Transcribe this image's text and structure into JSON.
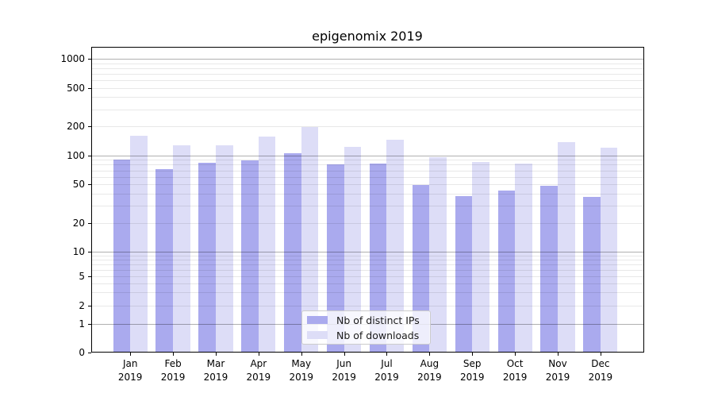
{
  "chart_data": {
    "type": "bar",
    "title": "epigenomix 2019",
    "x_months": [
      "Jan",
      "Feb",
      "Mar",
      "Apr",
      "May",
      "Jun",
      "Jul",
      "Aug",
      "Sep",
      "Oct",
      "Nov",
      "Dec"
    ],
    "x_year": "2019",
    "categories": [
      "Jan 2019",
      "Feb 2019",
      "Mar 2019",
      "Apr 2019",
      "May 2019",
      "Jun 2019",
      "Jul 2019",
      "Aug 2019",
      "Sep 2019",
      "Oct 2019",
      "Nov 2019",
      "Dec 2019"
    ],
    "series": [
      {
        "name": "Nb of distinct IPs",
        "color": "#aaaaee",
        "values": [
          90,
          72,
          84,
          88,
          105,
          80,
          82,
          49,
          38,
          43,
          48,
          37
        ]
      },
      {
        "name": "Nb of downloads",
        "color": "#ddddf7",
        "values": [
          160,
          126,
          128,
          158,
          196,
          123,
          146,
          96,
          86,
          82,
          137,
          121
        ]
      }
    ],
    "y_scale": "symlog",
    "y_ticks": [
      0,
      1,
      2,
      5,
      10,
      20,
      50,
      100,
      200,
      500,
      1000
    ],
    "y_minor_gridlines": [
      2,
      3,
      4,
      5,
      6,
      7,
      8,
      9,
      20,
      30,
      40,
      50,
      60,
      70,
      80,
      90,
      200,
      300,
      400,
      500,
      600,
      700,
      800,
      900
    ],
    "y_major_gridlines": [
      1,
      10,
      100,
      1000
    ],
    "ylim": [
      0,
      1300
    ],
    "grid": true,
    "legend_position": "lower center",
    "colors": {
      "major_grid": "#b0b0b0",
      "minor_grid": "#e8e8e8",
      "axis": "#000000"
    }
  }
}
